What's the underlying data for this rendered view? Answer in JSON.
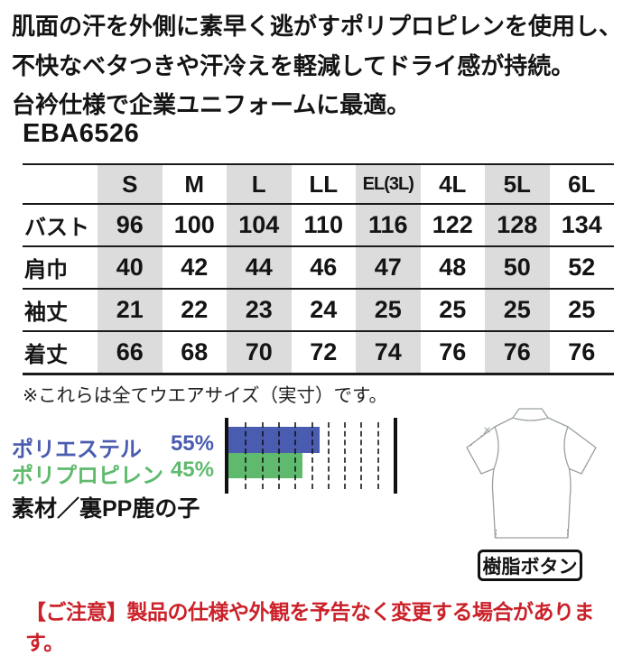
{
  "content": {
    "description_lines": [
      "肌面の汗を外側に素早く逃がすポリプロピレンを使用し、",
      "不快なベタつきや汗冷えを軽減してドライ感が持続。",
      "台衿仕様で企業ユニフォームに最適。"
    ],
    "product_code": "EBA6526"
  },
  "size_table": {
    "columns": [
      "S",
      "M",
      "L",
      "LL",
      "EL(3L)",
      "4L",
      "5L",
      "6L"
    ],
    "rows": [
      {
        "label": "バスト",
        "values": [
          "96",
          "100",
          "104",
          "110",
          "116",
          "122",
          "128",
          "134"
        ]
      },
      {
        "label": "肩巾",
        "values": [
          "40",
          "42",
          "44",
          "46",
          "47",
          "48",
          "50",
          "52"
        ]
      },
      {
        "label": "袖丈",
        "values": [
          "21",
          "22",
          "23",
          "24",
          "25",
          "25",
          "25",
          "25"
        ]
      },
      {
        "label": "着丈",
        "values": [
          "66",
          "68",
          "70",
          "72",
          "74",
          "76",
          "76",
          "76"
        ]
      }
    ],
    "stripe_color": "#dcdcdc",
    "note": "※これらは全てウエアサイズ（実寸）です。"
  },
  "chart_data": {
    "type": "bar",
    "orientation": "horizontal",
    "title": "",
    "categories": [
      "ポリエステル",
      "ポリプロピレン"
    ],
    "values": [
      55,
      45
    ],
    "unit": "%",
    "xlim": [
      0,
      100
    ],
    "gridline_interval": 10,
    "grid": true,
    "legend_position": "left",
    "series_colors": [
      "#4a5caf",
      "#5fba6e"
    ],
    "labels": [
      "ポリエステル 55%",
      "ポリプロピレン 45%"
    ]
  },
  "material": {
    "polyester_label": "ポリエステル",
    "polyester_value": "55%",
    "polypropylene_label": "ポリプロピレン",
    "polypropylene_value": "45%",
    "fabric_note": "素材／裏PP鹿の子"
  },
  "illustration": {
    "caption": "樹脂ボタン"
  },
  "footer": {
    "notice": "【ご注意】製品の仕様や外観を予告なく変更する場合があります。",
    "color": "#cb2129"
  }
}
